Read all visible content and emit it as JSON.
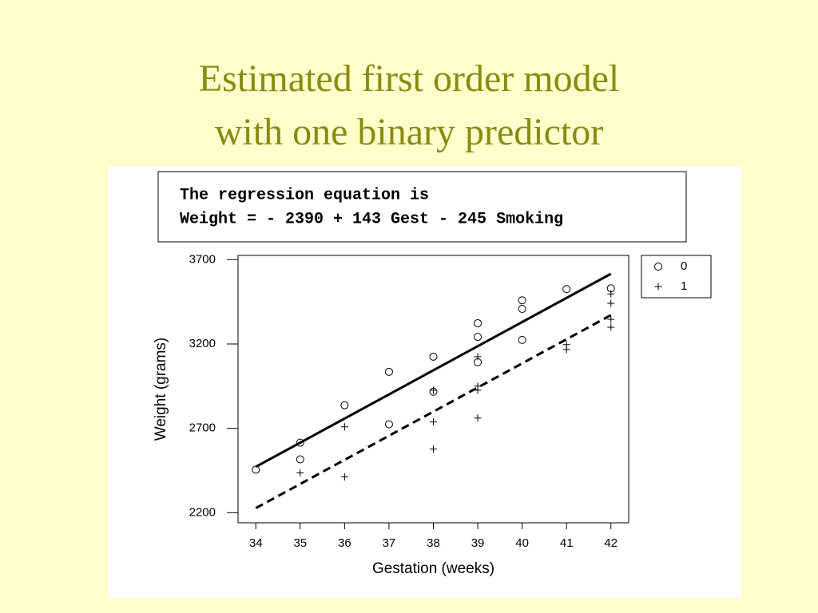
{
  "slide": {
    "title": [
      "Estimated first order model",
      "with one binary predictor"
    ],
    "equation": [
      "The regression equation is",
      "Weight = - 2390 + 143 Gest - 245 Smoking"
    ]
  },
  "chart_data": {
    "type": "scatter",
    "x_label": "Gestation (weeks)",
    "y_label": "Weight (grams)",
    "xlim": [
      33.6,
      42.4
    ],
    "ylim": [
      2140,
      3725
    ],
    "xticks": [
      34,
      35,
      36,
      37,
      38,
      39,
      40,
      41,
      42
    ],
    "yticks": [
      2200,
      2700,
      3200,
      3700
    ],
    "legend": "outside-top-right",
    "series": [
      {
        "name": "0",
        "marker": "circle",
        "color": "#000000",
        "x": [
          34,
          35,
          35,
          36,
          37,
          37,
          38,
          38,
          39,
          39,
          39,
          40,
          40,
          40,
          41,
          42
        ],
        "values": [
          2455,
          2615,
          2516,
          2837,
          3035,
          2724,
          3125,
          2917,
          3323,
          3242,
          3092,
          3459,
          3408,
          3224,
          3525,
          3530
        ]
      },
      {
        "name": "1",
        "marker": "plus",
        "color": "#000000",
        "x": [
          35,
          36,
          36,
          38,
          38,
          38,
          39,
          39,
          39,
          39,
          41,
          41,
          42,
          42,
          42,
          42
        ],
        "values": [
          2436,
          2412,
          2709,
          2926,
          2738,
          2577,
          3125,
          2950,
          2926,
          2761,
          3196,
          3167,
          3497,
          3441,
          3346,
          3299
        ]
      }
    ],
    "fit_lines": [
      {
        "x": [
          34,
          42
        ],
        "values": [
          2472,
          3616
        ],
        "dashed": false
      },
      {
        "x": [
          34,
          42
        ],
        "values": [
          2227,
          3371
        ],
        "dashed": true
      }
    ]
  }
}
